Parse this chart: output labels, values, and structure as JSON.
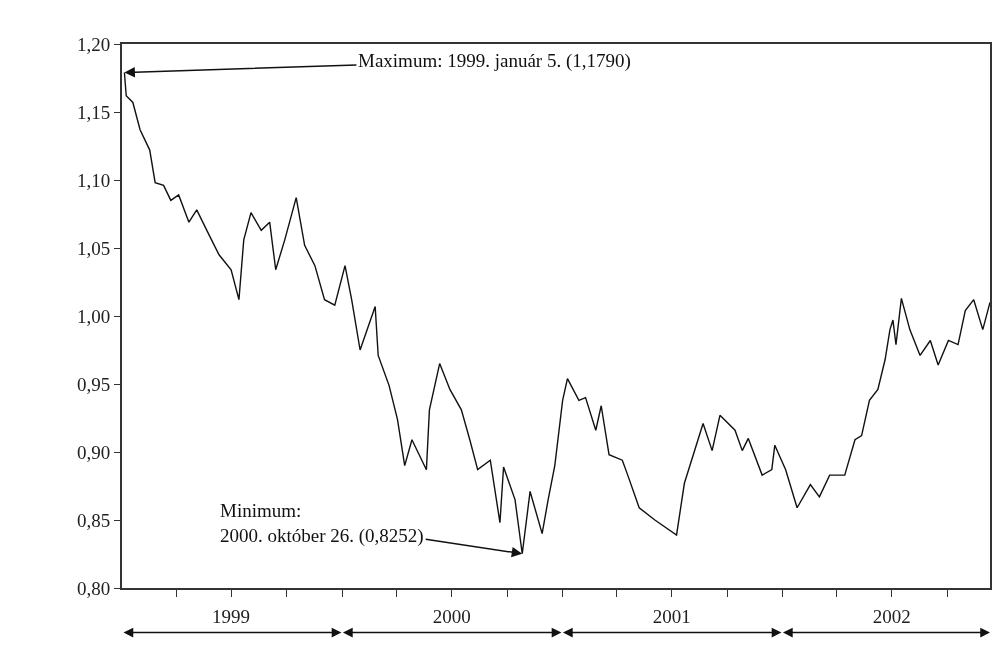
{
  "chart_data": {
    "type": "line",
    "x": [
      "1999-01-05",
      "1999-01-08",
      "1999-01-19",
      "1999-01-31",
      "1999-02-16",
      "1999-02-25",
      "1999-03-11",
      "1999-03-23",
      "1999-04-05",
      "1999-04-22",
      "1999-05-05",
      "1999-05-25",
      "1999-06-11",
      "1999-07-01",
      "1999-07-14",
      "1999-07-22",
      "1999-08-03",
      "1999-08-20",
      "1999-09-03",
      "1999-09-13",
      "1999-09-28",
      "1999-10-17",
      "1999-10-31",
      "1999-11-17",
      "1999-12-03",
      "1999-12-20",
      "2000-01-06",
      "2000-01-17",
      "2000-01-31",
      "2000-02-25",
      "2000-03-01",
      "2000-03-19",
      "2000-04-02",
      "2000-04-14",
      "2000-04-26",
      "2000-05-20",
      "2000-05-25",
      "2000-06-11",
      "2000-06-28",
      "2000-07-17",
      "2000-07-31",
      "2000-08-13",
      "2000-09-03",
      "2000-09-19",
      "2000-09-25",
      "2000-10-14",
      "2000-10-26",
      "2000-11-08",
      "2000-11-28",
      "2000-12-08",
      "2000-12-19",
      "2001-01-01",
      "2001-01-09",
      "2001-01-28",
      "2001-02-08",
      "2001-02-25",
      "2001-03-06",
      "2001-03-19",
      "2001-04-10",
      "2001-04-19",
      "2001-05-08",
      "2001-06-03",
      "2001-07-09",
      "2001-07-22",
      "2001-08-22",
      "2001-09-06",
      "2001-09-19",
      "2001-10-14",
      "2001-10-26",
      "2001-11-05",
      "2001-11-28",
      "2001-12-14",
      "2001-12-19",
      "2002-01-06",
      "2002-01-25",
      "2002-02-16",
      "2002-03-03",
      "2002-03-20",
      "2002-04-14",
      "2002-05-01",
      "2002-05-12",
      "2002-05-25",
      "2002-06-08",
      "2002-06-20",
      "2002-06-28",
      "2002-07-03",
      "2002-07-08",
      "2002-07-17",
      "2002-07-31",
      "2002-08-17",
      "2002-09-03",
      "2002-09-16",
      "2002-10-03",
      "2002-10-19",
      "2002-10-31",
      "2002-11-14",
      "2002-11-29",
      "2002-12-11"
    ],
    "series": [
      {
        "color": "#111111",
        "values": [
          1.179,
          1.162,
          1.157,
          1.137,
          1.122,
          1.098,
          1.096,
          1.085,
          1.089,
          1.069,
          1.078,
          1.06,
          1.045,
          1.034,
          1.012,
          1.056,
          1.076,
          1.063,
          1.069,
          1.034,
          1.056,
          1.087,
          1.052,
          1.037,
          1.012,
          1.008,
          1.037,
          1.012,
          0.975,
          1.007,
          0.971,
          0.949,
          0.924,
          0.89,
          0.909,
          0.887,
          0.931,
          0.965,
          0.946,
          0.931,
          0.909,
          0.887,
          0.894,
          0.848,
          0.889,
          0.865,
          0.8252,
          0.871,
          0.84,
          0.865,
          0.89,
          0.938,
          0.954,
          0.938,
          0.94,
          0.916,
          0.934,
          0.898,
          0.894,
          0.883,
          0.859,
          0.85,
          0.839,
          0.877,
          0.921,
          0.901,
          0.927,
          0.916,
          0.901,
          0.91,
          0.883,
          0.887,
          0.905,
          0.887,
          0.859,
          0.876,
          0.867,
          0.883,
          0.883,
          0.909,
          0.912,
          0.938,
          0.946,
          0.968,
          0.99,
          0.997,
          0.979,
          1.013,
          0.99,
          0.971,
          0.982,
          0.964,
          0.982,
          0.979,
          1.004,
          1.012,
          0.99,
          1.01
        ]
      }
    ],
    "xlim": [
      "1999-01-01",
      "2002-12-11"
    ],
    "xticks": [
      {
        "value": "1999-04-01",
        "label": null
      },
      {
        "value": "1999-07-01",
        "label": "1999"
      },
      {
        "value": "1999-10-01",
        "label": null
      },
      {
        "value": "2000-01-01",
        "label": null
      },
      {
        "value": "2000-04-01",
        "label": null
      },
      {
        "value": "2000-07-01",
        "label": "2000"
      },
      {
        "value": "2000-10-01",
        "label": null
      },
      {
        "value": "2001-01-01",
        "label": null
      },
      {
        "value": "2001-04-01",
        "label": null
      },
      {
        "value": "2001-07-01",
        "label": "2001"
      },
      {
        "value": "2001-10-01",
        "label": null
      },
      {
        "value": "2002-01-01",
        "label": null
      },
      {
        "value": "2002-04-01",
        "label": null
      },
      {
        "value": "2002-07-01",
        "label": "2002"
      },
      {
        "value": "2002-10-01",
        "label": null
      }
    ],
    "ylim": [
      0.8,
      1.2
    ],
    "yticks": [
      {
        "value": 0.8,
        "label": "0,80"
      },
      {
        "value": 0.85,
        "label": "0,85"
      },
      {
        "value": 0.9,
        "label": "0,90"
      },
      {
        "value": 0.95,
        "label": "0,95"
      },
      {
        "value": 1.0,
        "label": "1,00"
      },
      {
        "value": 1.05,
        "label": "1,05"
      },
      {
        "value": 1.1,
        "label": "1,10"
      },
      {
        "value": 1.15,
        "label": "1,15"
      },
      {
        "value": 1.2,
        "label": "1,20"
      }
    ],
    "annotations": [
      {
        "text": "Maximum: 1999. január 5. (1,1790)",
        "x": "1999-01-05",
        "y": 1.179
      },
      {
        "text": "Minimum:\n2000. október 26. (0,8252)",
        "x": "2000-10-26",
        "y": 0.8252
      }
    ],
    "marker": "none",
    "line_style": "solid"
  }
}
